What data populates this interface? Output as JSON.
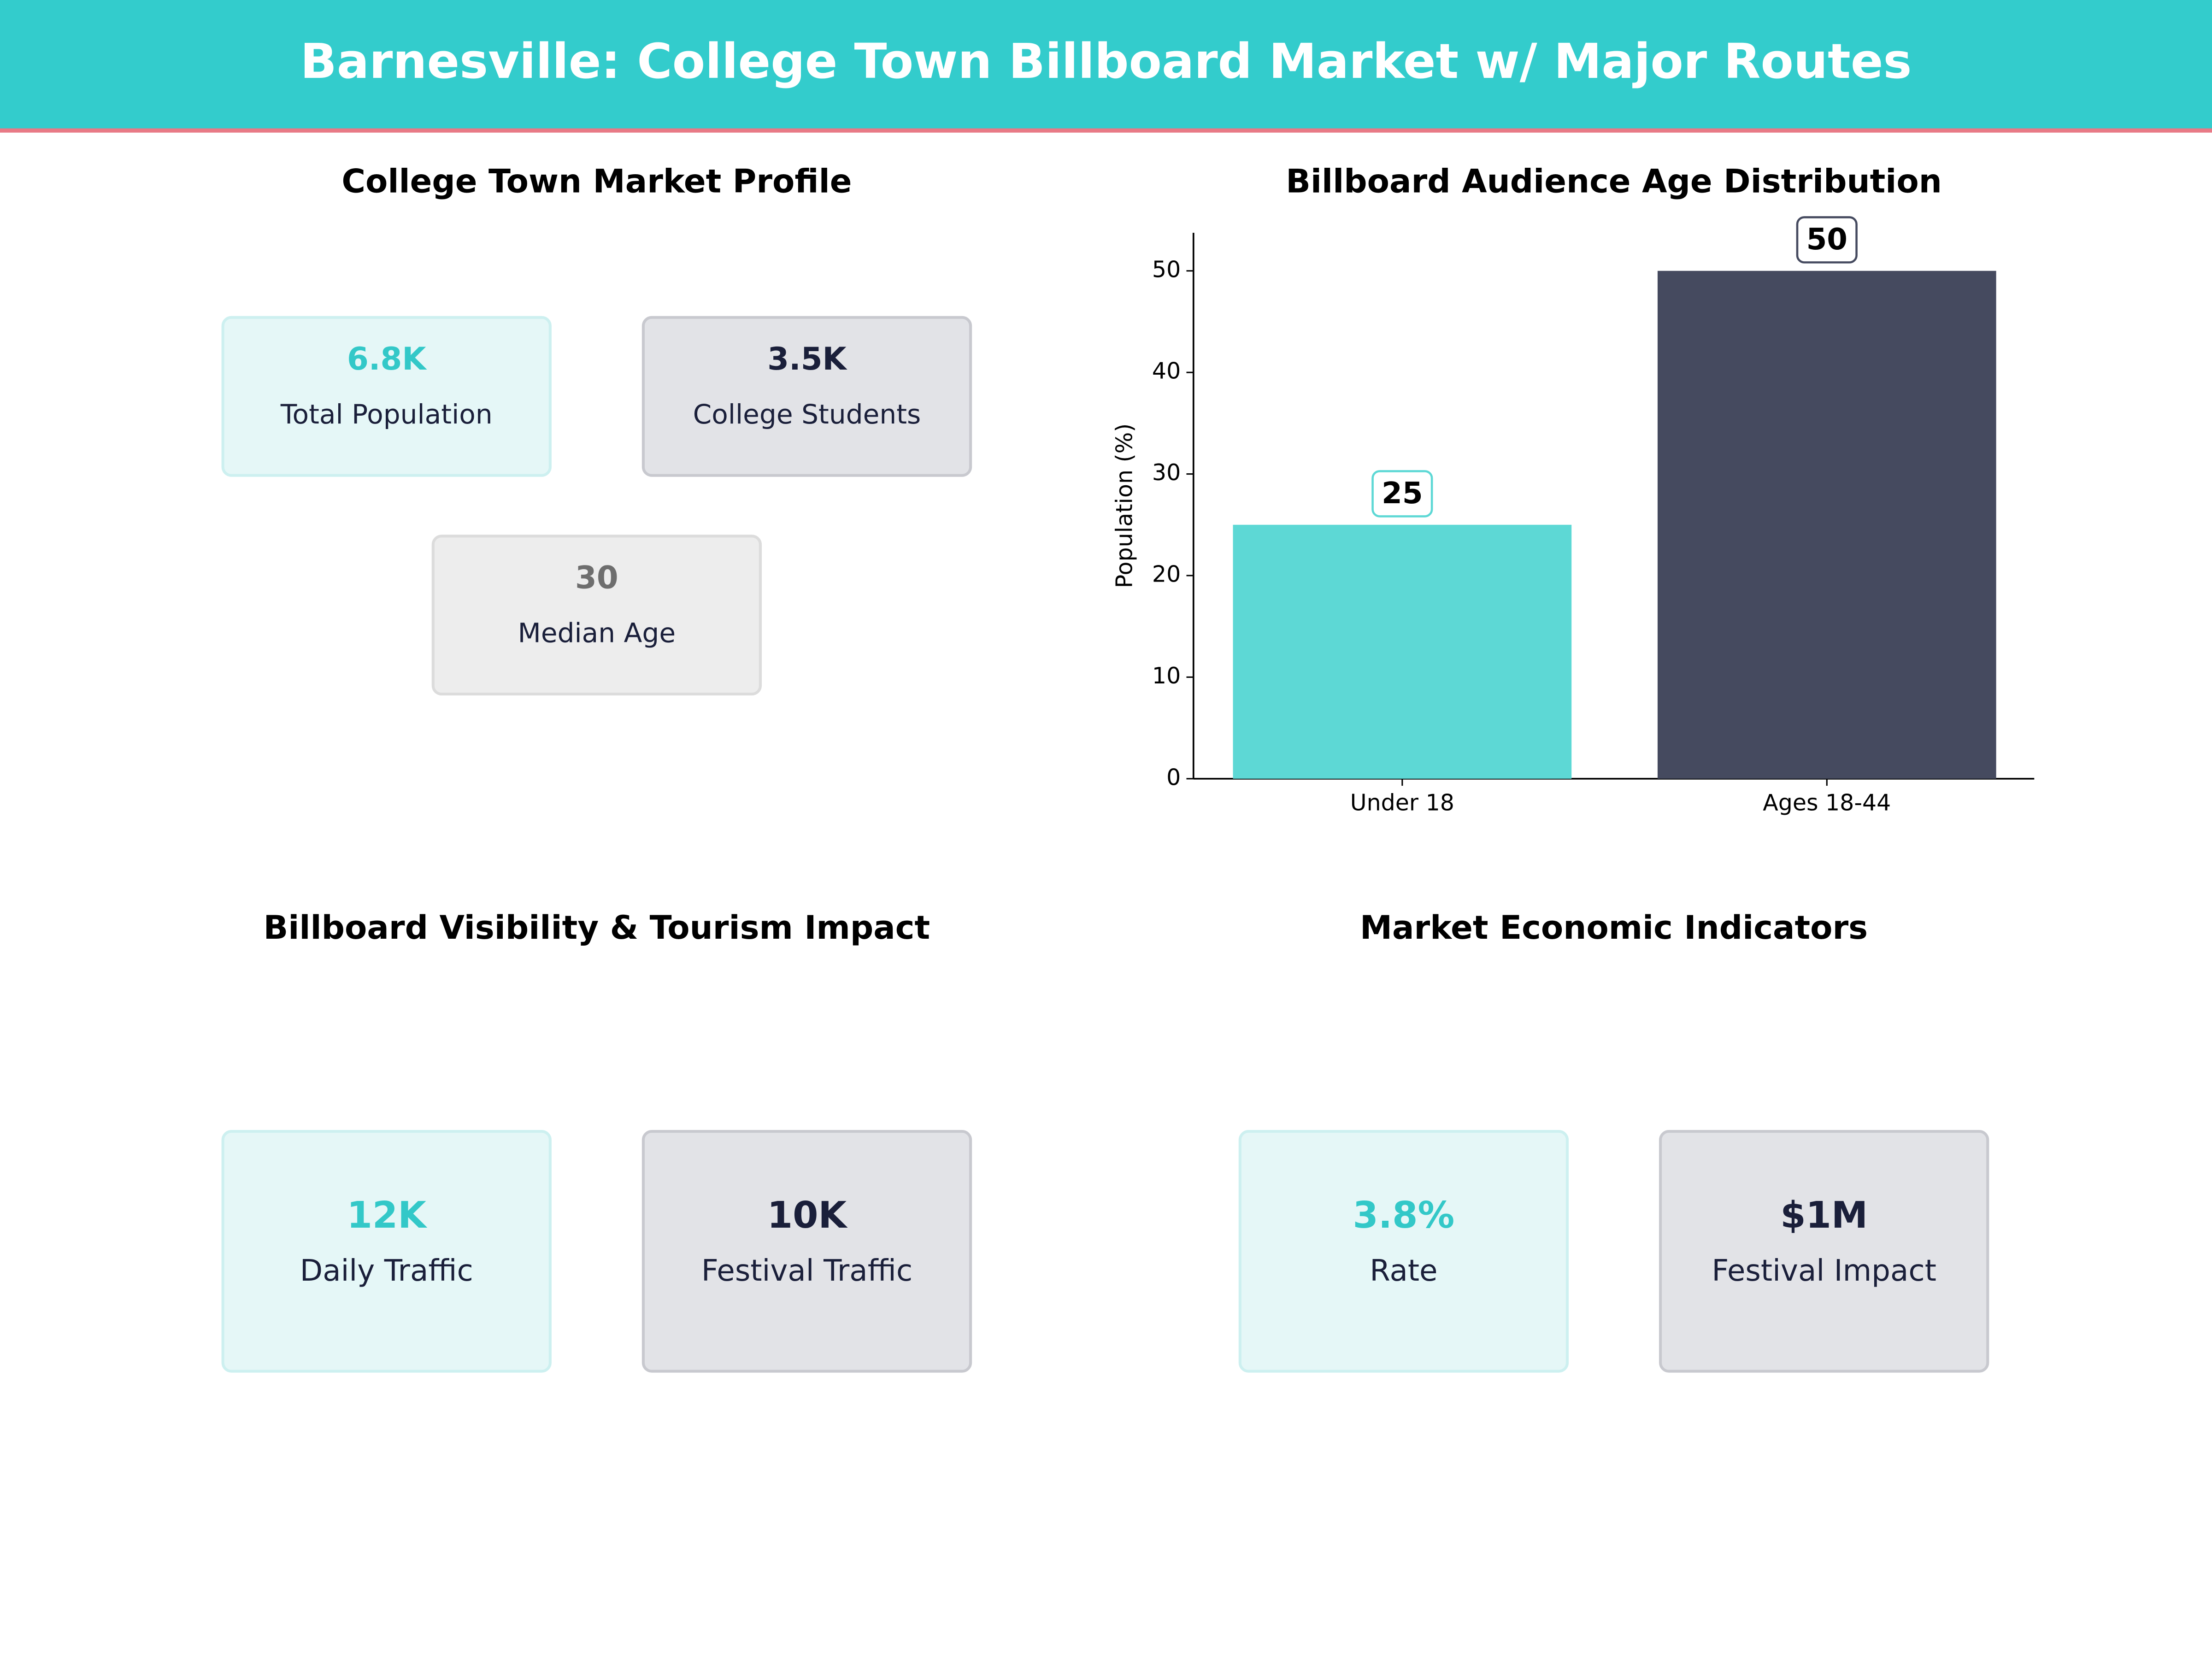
{
  "title": "Barnesville: College Town Billboard Market w/ Major Routes",
  "market_profile": {
    "title": "College Town Market Profile",
    "cards": [
      {
        "value": "6.8K",
        "label": "Total Population",
        "variant": "teal"
      },
      {
        "value": "3.5K",
        "label": "College Students",
        "variant": "dark"
      },
      {
        "value": "30",
        "label": "Median Age",
        "variant": "grey"
      }
    ]
  },
  "chart_data": {
    "type": "bar",
    "title": "Billboard Audience Age Distribution",
    "ylabel": "Population (%)",
    "categories": [
      "Under 18",
      "Ages 18-44"
    ],
    "values": [
      25,
      50
    ],
    "colors": [
      "#5dd8d5",
      "#454a5f"
    ],
    "label_borders": [
      "#5dd8d5",
      "#454a5f"
    ],
    "ylim": [
      0,
      53.75
    ],
    "yticks": [
      0,
      10,
      20,
      30,
      40,
      50
    ],
    "grid": false
  },
  "visibility": {
    "title": "Billboard Visibility & Tourism Impact",
    "cards": [
      {
        "value": "12K",
        "label": "Daily Traffic",
        "variant": "teal"
      },
      {
        "value": "10K",
        "label": "Festival Traffic",
        "variant": "dark"
      }
    ]
  },
  "economic": {
    "title": "Market Economic Indicators",
    "cards": [
      {
        "value": "3.8%",
        "label": "Rate",
        "variant": "teal"
      },
      {
        "value": "$1M",
        "label": "Festival Impact",
        "variant": "dark"
      }
    ]
  }
}
